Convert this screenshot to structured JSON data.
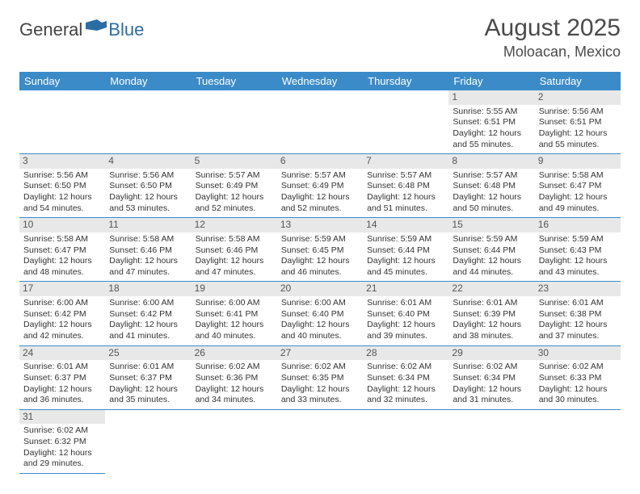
{
  "logo": {
    "general": "General",
    "blue": "Blue"
  },
  "title": "August 2025",
  "location": "Moloacan, Mexico",
  "colors": {
    "header_bar": "#3b8bc9",
    "day_number_bg": "#e8e8e8",
    "border": "#3b8bc9",
    "text": "#333333",
    "logo_gray": "#444444",
    "logo_blue": "#2b6ca3"
  },
  "weekdays": [
    "Sunday",
    "Monday",
    "Tuesday",
    "Wednesday",
    "Thursday",
    "Friday",
    "Saturday"
  ],
  "first_weekday_index": 5,
  "days": [
    {
      "n": 1,
      "sunrise": "5:55 AM",
      "sunset": "6:51 PM",
      "dl_h": 12,
      "dl_m": 55
    },
    {
      "n": 2,
      "sunrise": "5:56 AM",
      "sunset": "6:51 PM",
      "dl_h": 12,
      "dl_m": 55
    },
    {
      "n": 3,
      "sunrise": "5:56 AM",
      "sunset": "6:50 PM",
      "dl_h": 12,
      "dl_m": 54
    },
    {
      "n": 4,
      "sunrise": "5:56 AM",
      "sunset": "6:50 PM",
      "dl_h": 12,
      "dl_m": 53
    },
    {
      "n": 5,
      "sunrise": "5:57 AM",
      "sunset": "6:49 PM",
      "dl_h": 12,
      "dl_m": 52
    },
    {
      "n": 6,
      "sunrise": "5:57 AM",
      "sunset": "6:49 PM",
      "dl_h": 12,
      "dl_m": 52
    },
    {
      "n": 7,
      "sunrise": "5:57 AM",
      "sunset": "6:48 PM",
      "dl_h": 12,
      "dl_m": 51
    },
    {
      "n": 8,
      "sunrise": "5:57 AM",
      "sunset": "6:48 PM",
      "dl_h": 12,
      "dl_m": 50
    },
    {
      "n": 9,
      "sunrise": "5:58 AM",
      "sunset": "6:47 PM",
      "dl_h": 12,
      "dl_m": 49
    },
    {
      "n": 10,
      "sunrise": "5:58 AM",
      "sunset": "6:47 PM",
      "dl_h": 12,
      "dl_m": 48
    },
    {
      "n": 11,
      "sunrise": "5:58 AM",
      "sunset": "6:46 PM",
      "dl_h": 12,
      "dl_m": 47
    },
    {
      "n": 12,
      "sunrise": "5:58 AM",
      "sunset": "6:46 PM",
      "dl_h": 12,
      "dl_m": 47
    },
    {
      "n": 13,
      "sunrise": "5:59 AM",
      "sunset": "6:45 PM",
      "dl_h": 12,
      "dl_m": 46
    },
    {
      "n": 14,
      "sunrise": "5:59 AM",
      "sunset": "6:44 PM",
      "dl_h": 12,
      "dl_m": 45
    },
    {
      "n": 15,
      "sunrise": "5:59 AM",
      "sunset": "6:44 PM",
      "dl_h": 12,
      "dl_m": 44
    },
    {
      "n": 16,
      "sunrise": "5:59 AM",
      "sunset": "6:43 PM",
      "dl_h": 12,
      "dl_m": 43
    },
    {
      "n": 17,
      "sunrise": "6:00 AM",
      "sunset": "6:42 PM",
      "dl_h": 12,
      "dl_m": 42
    },
    {
      "n": 18,
      "sunrise": "6:00 AM",
      "sunset": "6:42 PM",
      "dl_h": 12,
      "dl_m": 41
    },
    {
      "n": 19,
      "sunrise": "6:00 AM",
      "sunset": "6:41 PM",
      "dl_h": 12,
      "dl_m": 40
    },
    {
      "n": 20,
      "sunrise": "6:00 AM",
      "sunset": "6:40 PM",
      "dl_h": 12,
      "dl_m": 40
    },
    {
      "n": 21,
      "sunrise": "6:01 AM",
      "sunset": "6:40 PM",
      "dl_h": 12,
      "dl_m": 39
    },
    {
      "n": 22,
      "sunrise": "6:01 AM",
      "sunset": "6:39 PM",
      "dl_h": 12,
      "dl_m": 38
    },
    {
      "n": 23,
      "sunrise": "6:01 AM",
      "sunset": "6:38 PM",
      "dl_h": 12,
      "dl_m": 37
    },
    {
      "n": 24,
      "sunrise": "6:01 AM",
      "sunset": "6:37 PM",
      "dl_h": 12,
      "dl_m": 36
    },
    {
      "n": 25,
      "sunrise": "6:01 AM",
      "sunset": "6:37 PM",
      "dl_h": 12,
      "dl_m": 35
    },
    {
      "n": 26,
      "sunrise": "6:02 AM",
      "sunset": "6:36 PM",
      "dl_h": 12,
      "dl_m": 34
    },
    {
      "n": 27,
      "sunrise": "6:02 AM",
      "sunset": "6:35 PM",
      "dl_h": 12,
      "dl_m": 33
    },
    {
      "n": 28,
      "sunrise": "6:02 AM",
      "sunset": "6:34 PM",
      "dl_h": 12,
      "dl_m": 32
    },
    {
      "n": 29,
      "sunrise": "6:02 AM",
      "sunset": "6:34 PM",
      "dl_h": 12,
      "dl_m": 31
    },
    {
      "n": 30,
      "sunrise": "6:02 AM",
      "sunset": "6:33 PM",
      "dl_h": 12,
      "dl_m": 30
    },
    {
      "n": 31,
      "sunrise": "6:02 AM",
      "sunset": "6:32 PM",
      "dl_h": 12,
      "dl_m": 29
    }
  ],
  "labels": {
    "sunrise": "Sunrise:",
    "sunset": "Sunset:",
    "daylight": "Daylight:",
    "hours": "hours",
    "and": "and",
    "minutes": "minutes."
  }
}
